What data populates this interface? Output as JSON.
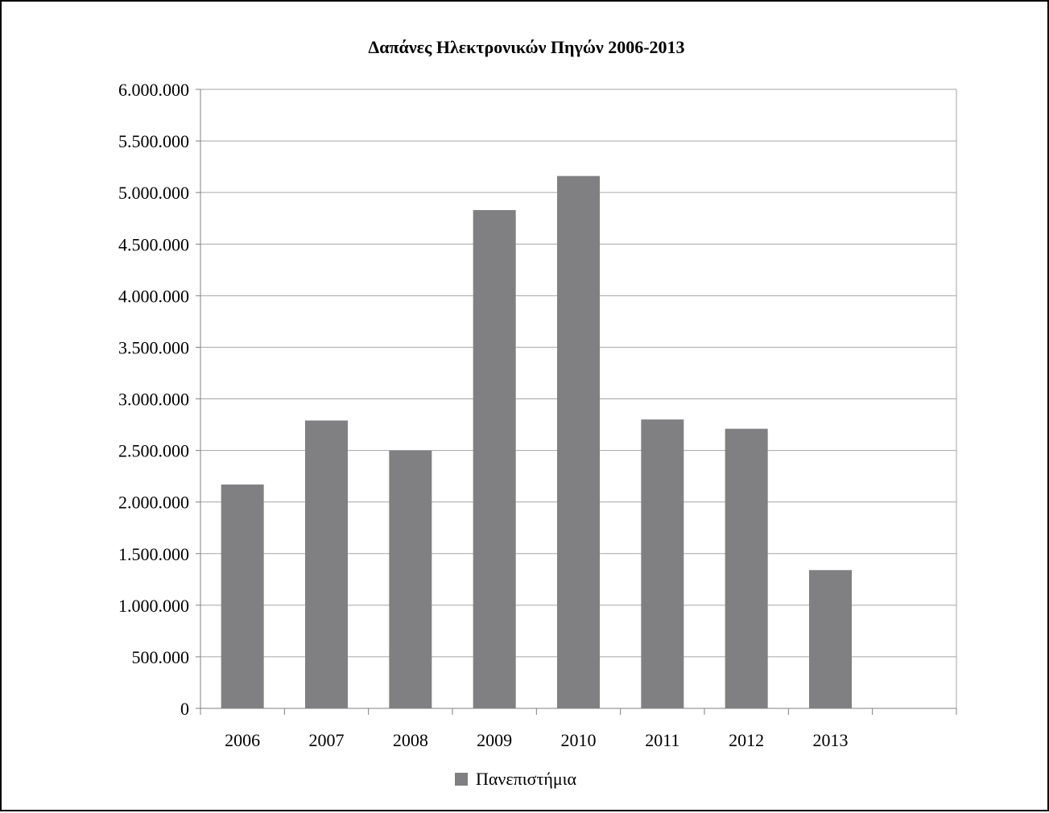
{
  "chart_data": {
    "type": "bar",
    "title": "Δαπάνες Ηλεκτρονικών Πηγών 2006-2013",
    "xlabel": "",
    "ylabel": "",
    "categories": [
      "2006",
      "2007",
      "2008",
      "2009",
      "2010",
      "2011",
      "2012",
      "2013",
      ""
    ],
    "series": [
      {
        "name": "Πανεπιστήμια",
        "values": [
          2170000,
          2790000,
          2500000,
          4830000,
          5160000,
          2800000,
          2710000,
          1340000,
          null
        ],
        "color": "#808083"
      }
    ],
    "ylim": [
      0,
      6000000
    ],
    "yticks": [
      0,
      500000,
      1000000,
      1500000,
      2000000,
      2500000,
      3000000,
      3500000,
      4000000,
      4500000,
      5000000,
      5500000,
      6000000
    ],
    "ytick_labels": [
      "0",
      "500.000",
      "1.000.000",
      "1.500.000",
      "2.000.000",
      "2.500.000",
      "3.000.000",
      "3.500.000",
      "4.000.000",
      "4.500.000",
      "5.000.000",
      "5.500.000",
      "6.000.000"
    ],
    "grid": true,
    "legend_position": "bottom",
    "gridline_color": "#a6a6a6",
    "axis_color": "#808080"
  }
}
